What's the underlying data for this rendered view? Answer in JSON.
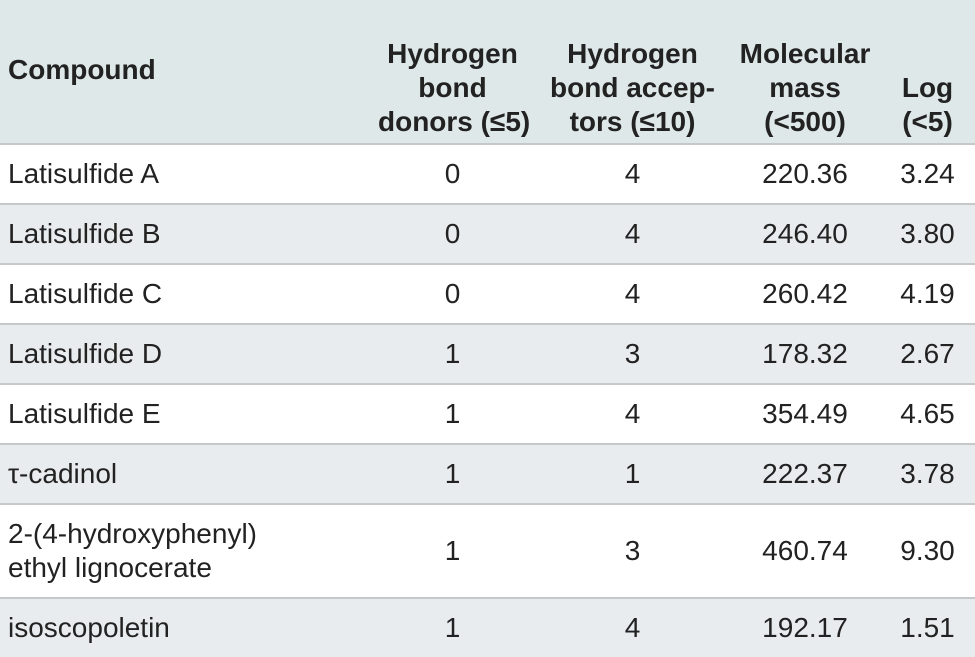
{
  "table": {
    "header": [
      [
        "Compound"
      ],
      [
        "Hydrogen",
        "bond",
        "donors (≤5)"
      ],
      [
        "Hydrogen",
        "bond accep-",
        "tors (≤10)"
      ],
      [
        "Molecular",
        "mass",
        "(<500)"
      ],
      [
        "Log",
        "(<5)"
      ]
    ],
    "rows": [
      [
        [
          "Latisulfide A"
        ],
        "0",
        "4",
        "220.36",
        "3.24"
      ],
      [
        [
          "Latisulfide B"
        ],
        "0",
        "4",
        "246.40",
        "3.80"
      ],
      [
        [
          "Latisulfide C"
        ],
        "0",
        "4",
        "260.42",
        "4.19"
      ],
      [
        [
          "Latisulfide D"
        ],
        "1",
        "3",
        "178.32",
        "2.67"
      ],
      [
        [
          "Latisulfide E"
        ],
        "1",
        "4",
        "354.49",
        "4.65"
      ],
      [
        [
          "τ-cadinol"
        ],
        "1",
        "1",
        "222.37",
        "3.78"
      ],
      [
        [
          "2-(4-hydroxyphenyl)",
          "ethyl lignocerate"
        ],
        "1",
        "3",
        "460.74",
        "9.30"
      ],
      [
        [
          "isoscopoletin"
        ],
        "1",
        "4",
        "192.17",
        "1.51"
      ]
    ]
  }
}
